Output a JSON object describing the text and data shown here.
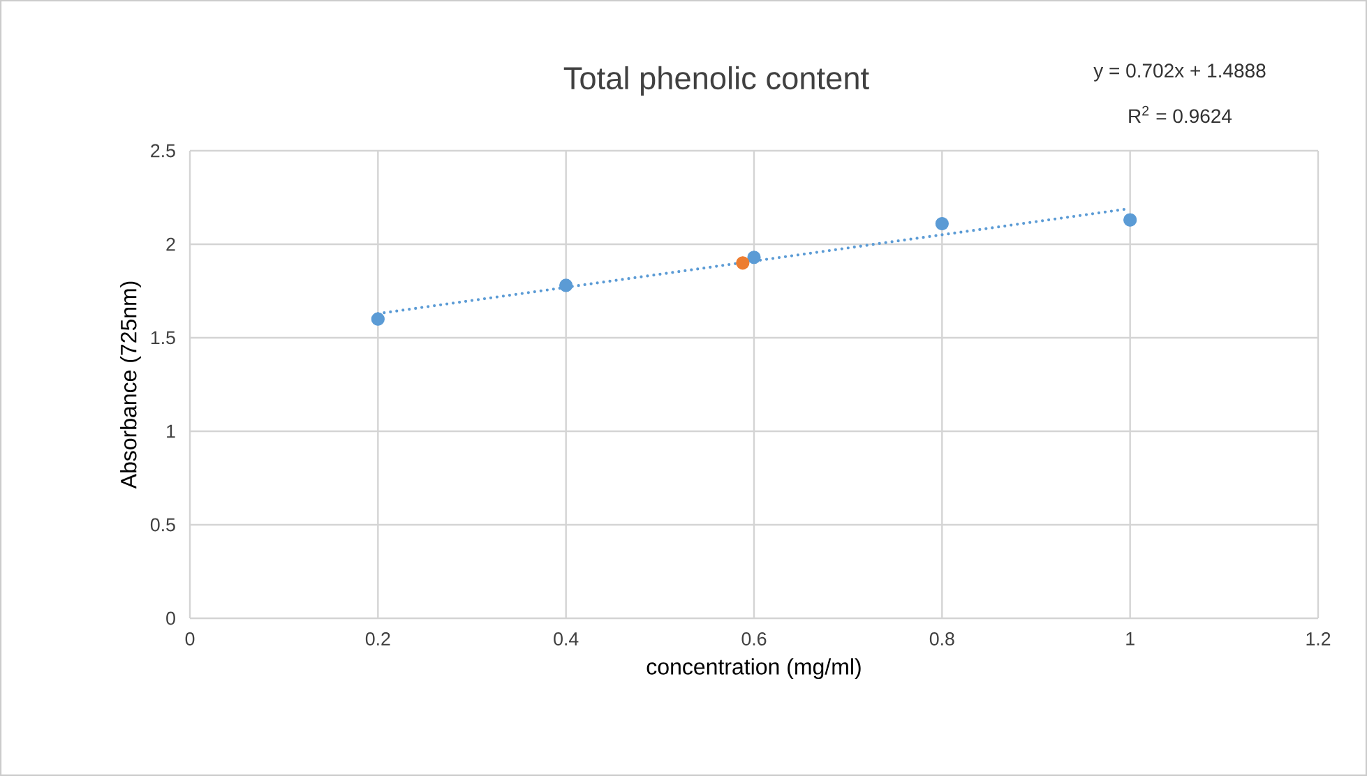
{
  "chart_data": {
    "type": "scatter",
    "title": "Total phenolic content",
    "xlabel": "concentration (mg/ml)",
    "ylabel": "Absorbance (725nm)",
    "xlim": [
      0,
      1.2
    ],
    "xticks": [
      0,
      0.2,
      0.4,
      0.6,
      0.8,
      1,
      1.2
    ],
    "ylim": [
      0,
      2.5
    ],
    "yticks": [
      0,
      0.5,
      1,
      1.5,
      2,
      2.5
    ],
    "grid": true,
    "marker": "circle",
    "series": [
      {
        "color": "#5b9bd5",
        "x": [
          0.2,
          0.4,
          0.6,
          0.8,
          1.0
        ],
        "values": [
          1.6,
          1.78,
          1.93,
          2.11,
          2.13
        ]
      },
      {
        "color": "#ed7d31",
        "x": [
          0.588
        ],
        "values": [
          1.9
        ]
      },
      {
        "type": "line",
        "marker": "none",
        "line_style": "dotted",
        "color": "#5b9bd5",
        "x": [
          0.2,
          1.0
        ],
        "values": [
          1.629,
          2.191
        ]
      }
    ],
    "annotations": [
      "y = 0.702x  + 1.4888",
      "R$^{2}$ = 0.9624"
    ]
  }
}
